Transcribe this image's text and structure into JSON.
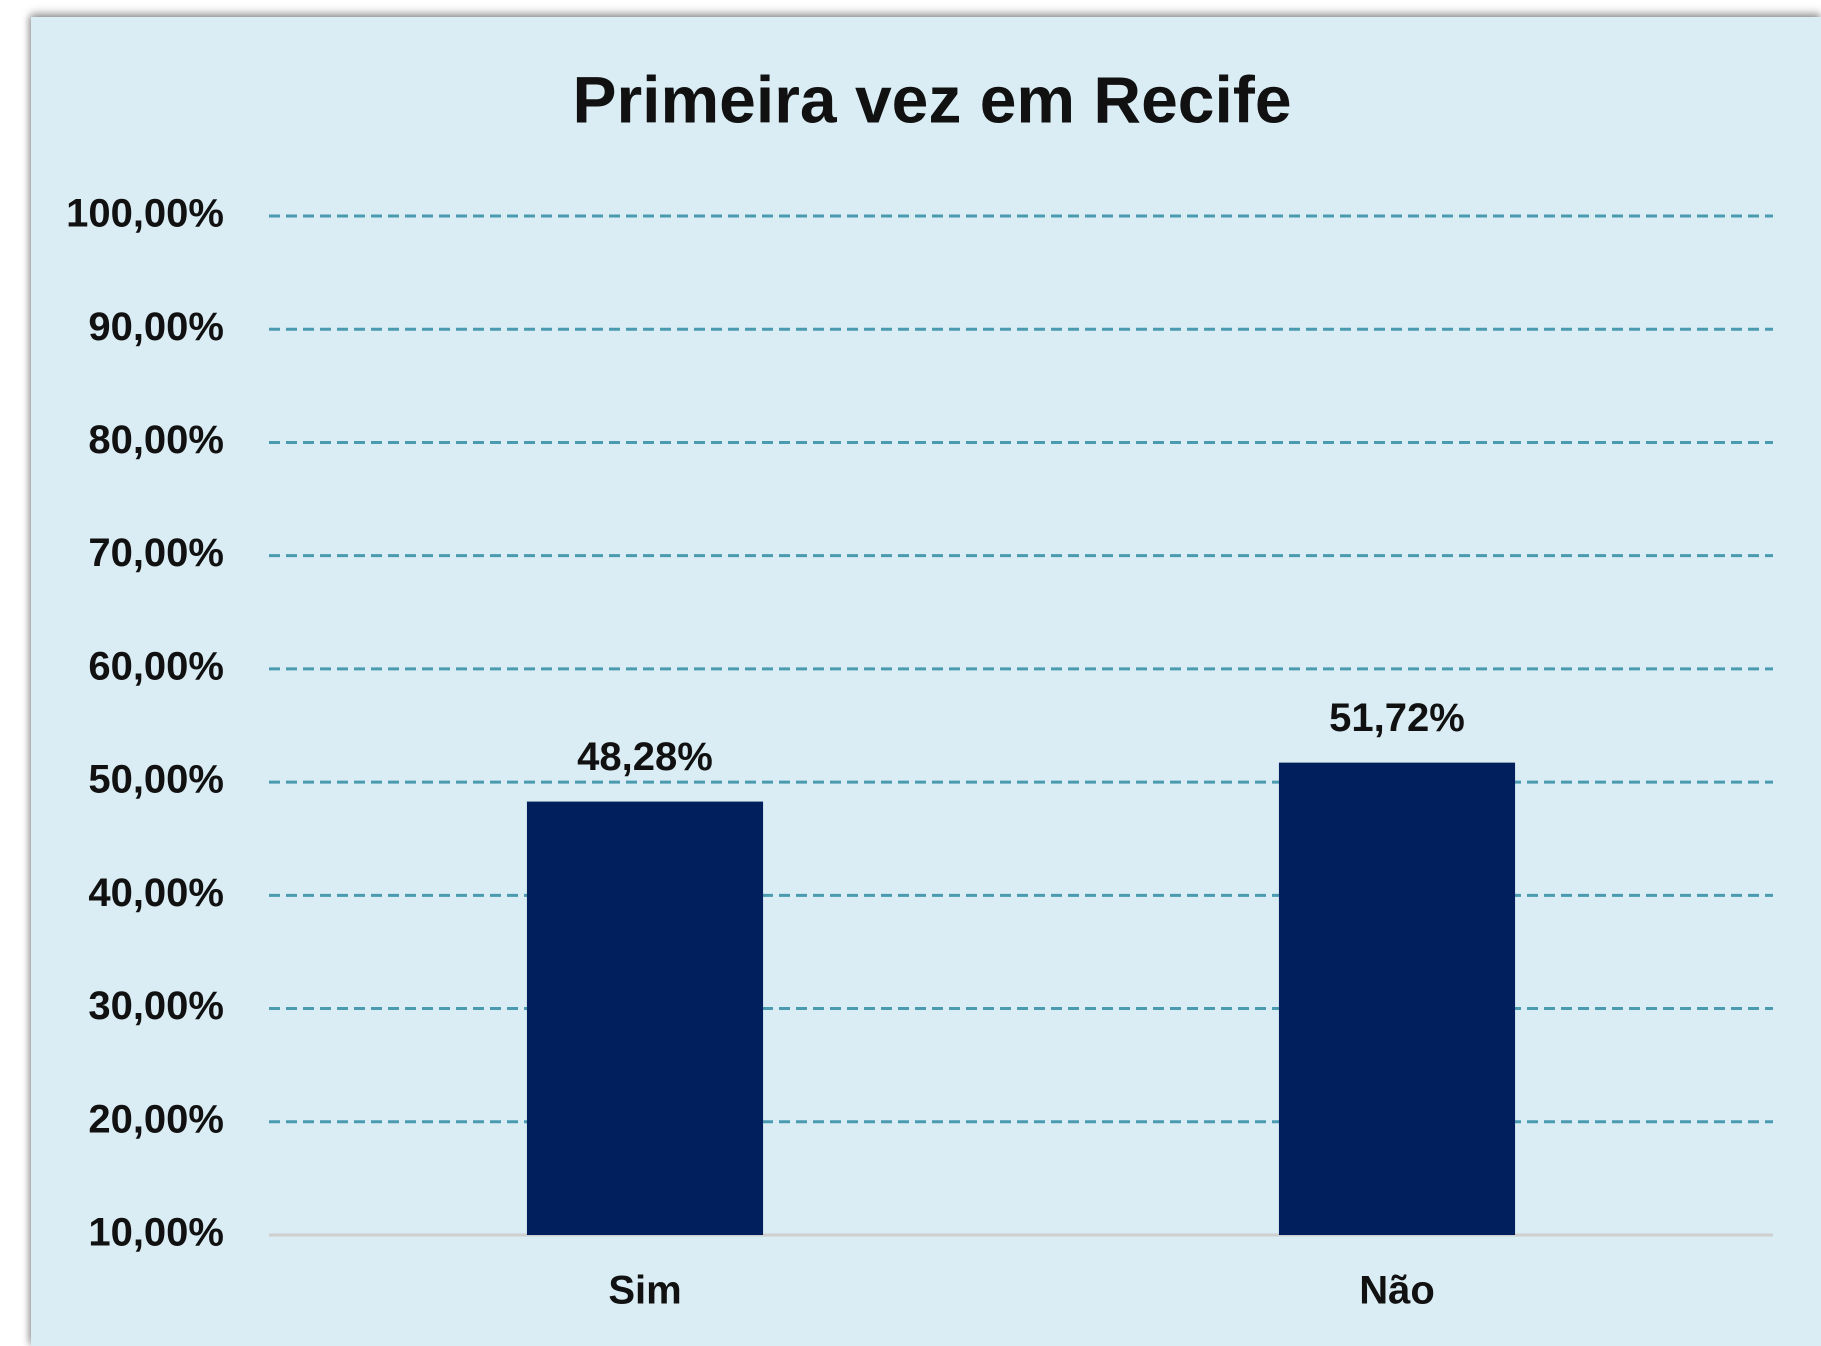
{
  "chart_data": {
    "type": "bar",
    "title": "Primeira vez em Recife",
    "categories": [
      "Sim",
      "Não"
    ],
    "values": [
      48.28,
      51.72
    ],
    "value_labels": [
      "48,28%",
      "51,72%"
    ],
    "color": "#001f5c",
    "ylim": [
      10,
      100
    ],
    "yticks": [
      {
        "value": 10,
        "label": "10,00%"
      },
      {
        "value": 20,
        "label": "20,00%"
      },
      {
        "value": 30,
        "label": "30,00%"
      },
      {
        "value": 40,
        "label": "40,00%"
      },
      {
        "value": 50,
        "label": "50,00%"
      },
      {
        "value": 60,
        "label": "60,00%"
      },
      {
        "value": 70,
        "label": "70,00%"
      },
      {
        "value": 80,
        "label": "80,00%"
      },
      {
        "value": 90,
        "label": "90,00%"
      },
      {
        "value": 100,
        "label": "100,00%"
      }
    ],
    "grid": true
  }
}
